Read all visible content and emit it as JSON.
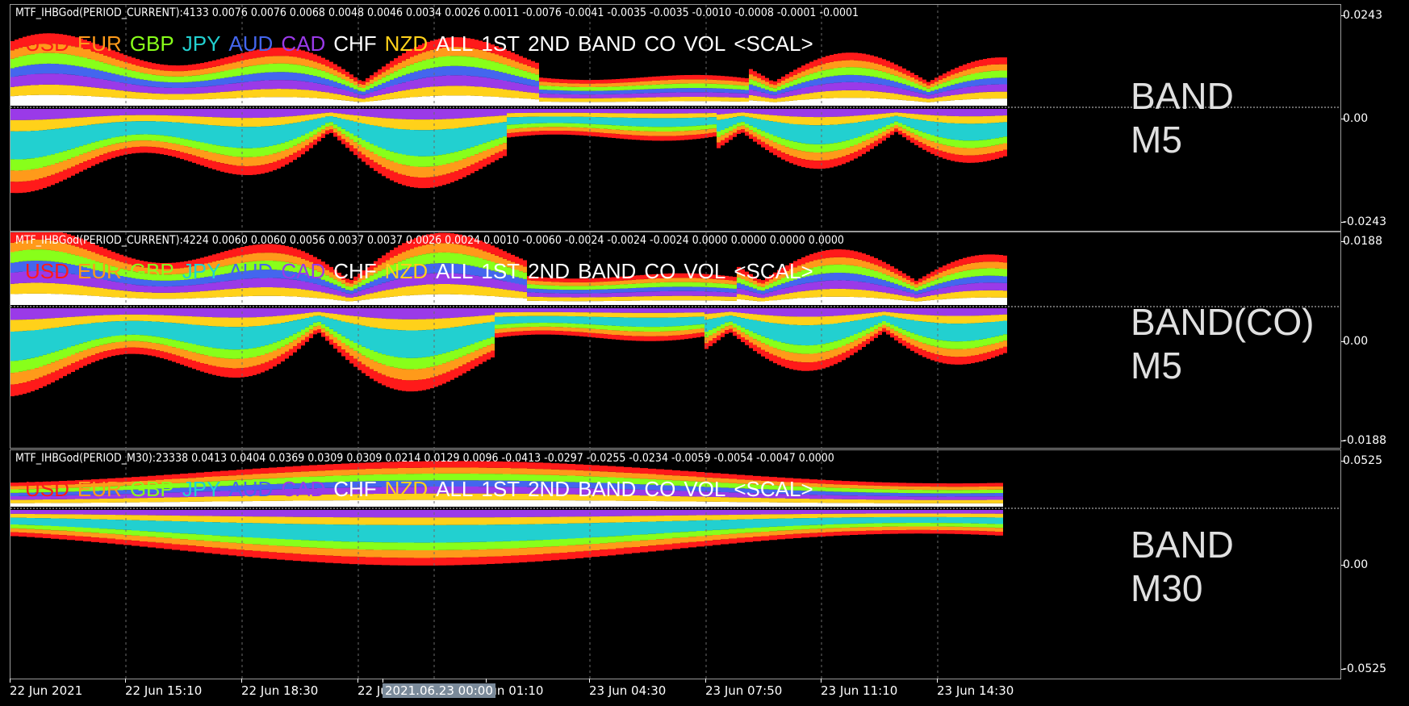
{
  "buttons": [
    {
      "label": "USD",
      "color": "#ff1a1a"
    },
    {
      "label": "EUR",
      "color": "#ff9a1a"
    },
    {
      "label": "GBP",
      "color": "#88ff1a"
    },
    {
      "label": "JPY",
      "color": "#22d0d0"
    },
    {
      "label": "AUD",
      "color": "#4466ee"
    },
    {
      "label": "CAD",
      "color": "#9a3ae8"
    },
    {
      "label": "CHF",
      "color": "#ffffff"
    },
    {
      "label": "NZD",
      "color": "#ffd11a"
    },
    {
      "label": "ALL",
      "color": "#ffffff"
    },
    {
      "label": "1ST",
      "color": "#ffffff"
    },
    {
      "label": "2ND",
      "color": "#ffffff"
    },
    {
      "label": "BAND",
      "color": "#ffffff"
    },
    {
      "label": "CO",
      "color": "#ffffff"
    },
    {
      "label": "VOL",
      "color": "#ffffff"
    },
    {
      "label": "<SCAL>",
      "color": "#ffffff"
    }
  ],
  "panes": [
    {
      "indicator_label": "MTF_IHBGod(PERIOD_CURRENT):4133 0.0076 0.0076 0.0068 0.0048 0.0046 0.0034 0.0026 0.0011 -0.0076 -0.0041 -0.0035 -0.0035 -0.0010 -0.0008 -0.0001 -0.0001",
      "tag1": "BAND",
      "tag2": "M5",
      "scale": {
        "max": "0.0243",
        "zero": "0.00",
        "min": "-0.0243"
      }
    },
    {
      "indicator_label": "MTF_IHBGod(PERIOD_CURRENT):4224 0.0060 0.0060 0.0056 0.0037 0.0037 0.0026 0.0024 0.0010 -0.0060 -0.0024 -0.0024 -0.0024 0.0000 0.0000 0.0000 0.0000",
      "tag1": "BAND(CO)",
      "tag2": "M5",
      "scale": {
        "max": "0.0188",
        "zero": "0.00",
        "min": "-0.0188"
      }
    },
    {
      "indicator_label": "MTF_IHBGod(PERIOD_M30):23338 0.0413 0.0404 0.0369 0.0309 0.0309 0.0214 0.0129 0.0096 -0.0413 -0.0297 -0.0255 -0.0234 -0.0059 -0.0054 -0.0047 0.0000",
      "tag1": "BAND",
      "tag2": "M30",
      "scale": {
        "max": "0.0525",
        "zero": "0.00",
        "min": "-0.0525"
      }
    }
  ],
  "time_axis": [
    "22 Jun 2021",
    "22 Jun 15:10",
    "22 Jun 18:30",
    "22 Ju",
    "2021.06.23 00:00",
    "Jun 01:10",
    "23 Jun 04:30",
    "23 Jun 07:50",
    "23 Jun 11:10",
    "23 Jun 14:30"
  ],
  "colors": {
    "background": "#000000",
    "usd": "#ff1a1a",
    "eur": "#ff9a1a",
    "gbp": "#88ff1a",
    "jpy": "#22d0d0",
    "aud": "#4466ee",
    "cad": "#9a3ae8",
    "chf": "#ffffff",
    "nzd": "#ffd11a"
  },
  "chart_data": [
    {
      "type": "area",
      "scale_max": 0.0243,
      "scale_min": -0.0243,
      "series": [
        {
          "name": "USD",
          "values": [
            0.0076
          ]
        },
        {
          "name": "EUR",
          "values": [
            0.0076
          ]
        },
        {
          "name": "GBP",
          "values": [
            0.0068
          ]
        },
        {
          "name": "JPY",
          "values": [
            0.0048
          ]
        },
        {
          "name": "AUD",
          "values": [
            0.0046
          ]
        },
        {
          "name": "CAD",
          "values": [
            0.0034
          ]
        },
        {
          "name": "CHF",
          "values": [
            0.0026
          ]
        },
        {
          "name": "NZD",
          "values": [
            0.0011
          ]
        }
      ]
    },
    {
      "type": "area",
      "scale_max": 0.0188,
      "scale_min": -0.0188,
      "series": [
        {
          "name": "USD",
          "values": [
            0.006
          ]
        },
        {
          "name": "EUR",
          "values": [
            0.006
          ]
        },
        {
          "name": "GBP",
          "values": [
            0.0056
          ]
        },
        {
          "name": "JPY",
          "values": [
            0.0037
          ]
        },
        {
          "name": "AUD",
          "values": [
            0.0037
          ]
        },
        {
          "name": "CAD",
          "values": [
            0.0026
          ]
        },
        {
          "name": "CHF",
          "values": [
            0.0024
          ]
        },
        {
          "name": "NZD",
          "values": [
            0.001
          ]
        }
      ]
    },
    {
      "type": "area",
      "scale_max": 0.0525,
      "scale_min": -0.0525,
      "series": [
        {
          "name": "USD",
          "values": [
            0.0413
          ]
        },
        {
          "name": "EUR",
          "values": [
            0.0404
          ]
        },
        {
          "name": "GBP",
          "values": [
            0.0369
          ]
        },
        {
          "name": "JPY",
          "values": [
            0.0309
          ]
        },
        {
          "name": "AUD",
          "values": [
            0.0309
          ]
        },
        {
          "name": "CAD",
          "values": [
            0.0214
          ]
        },
        {
          "name": "CHF",
          "values": [
            0.0129
          ]
        },
        {
          "name": "NZD",
          "values": [
            0.0096
          ]
        }
      ]
    }
  ]
}
